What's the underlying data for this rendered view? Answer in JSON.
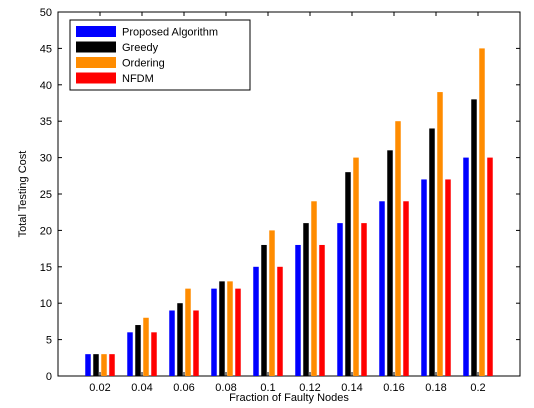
{
  "chart_data": {
    "type": "bar",
    "title": "",
    "xlabel": "Fraction of Faulty Nodes",
    "ylabel": "Total Testing Cost",
    "categories": [
      "0.02",
      "0.04",
      "0.06",
      "0.08",
      "0.1",
      "0.12",
      "0.14",
      "0.16",
      "0.18",
      "0.2"
    ],
    "ylim": [
      0,
      50
    ],
    "yticks": [
      0,
      5,
      10,
      15,
      20,
      25,
      30,
      35,
      40,
      45,
      50
    ],
    "grid": false,
    "legend_position": "top-left",
    "series": [
      {
        "name": "Proposed Algorithm",
        "color": "#0000ff",
        "values": [
          3,
          6,
          9,
          12,
          15,
          18,
          21,
          24,
          27,
          30
        ]
      },
      {
        "name": "Greedy",
        "color": "#000000",
        "values": [
          3,
          7,
          10,
          13,
          18,
          21,
          28,
          31,
          34,
          38
        ]
      },
      {
        "name": "Ordering",
        "color": "#ff8c00",
        "values": [
          3,
          8,
          12,
          13,
          20,
          24,
          30,
          35,
          39,
          45
        ]
      },
      {
        "name": "NFDM",
        "color": "#ff0000",
        "values": [
          3,
          6,
          9,
          12,
          15,
          18,
          21,
          24,
          27,
          30
        ]
      }
    ]
  }
}
